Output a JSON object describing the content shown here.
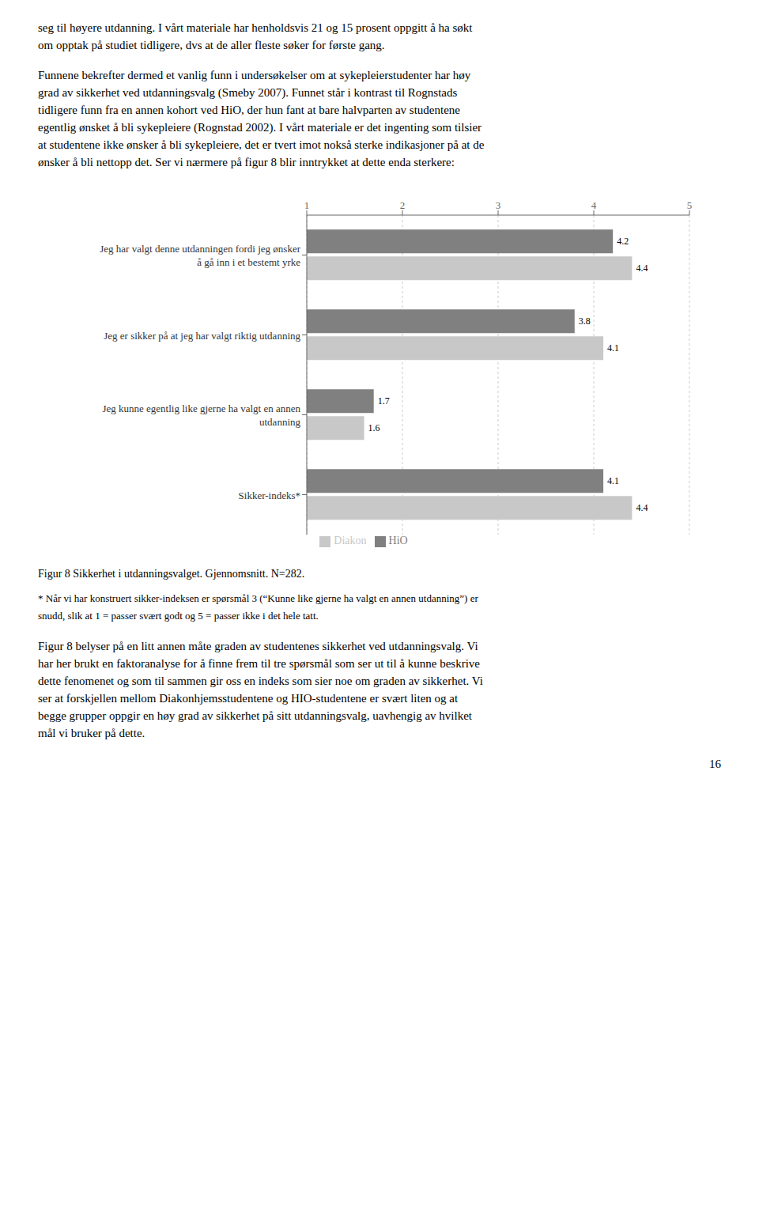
{
  "chart_data": {
    "type": "bar",
    "orientation": "horizontal",
    "title": "Figur 8 Sikkerhet i utdanningsvalget. Gjennomsnitt. N=282.",
    "categories": [
      "Jeg har valgt denne utdanningen fordi jeg ønsker\nå gå inn i et bestemt yrke",
      "Jeg er sikker på at jeg har valgt riktig utdanning",
      "Jeg kunne egentlig like gjerne ha valgt en annen\nutdanning",
      "Sikker-indeks*"
    ],
    "series": [
      {
        "name": "HiO",
        "color": "#808080",
        "values": [
          4.2,
          3.8,
          1.7,
          4.1
        ]
      },
      {
        "name": "Diakon",
        "color": "#c8c8c8",
        "values": [
          4.4,
          4.1,
          1.6,
          4.4
        ]
      }
    ],
    "xlim": [
      1,
      5
    ],
    "xticks": [
      1,
      2,
      3,
      4,
      5
    ],
    "grid": true,
    "legend": "bottom",
    "data_labels": true,
    "annotations": [
      [
        "seg til høyere utdanning. I vårt materiale har henholdsvis 21 og 15 prosent oppgitt å ha søkt",
        "om opptak på studiet tidligere, dvs at de aller fleste søker for første gang."
      ],
      [
        "Funnene bekrefter dermed et vanlig funn i undersøkelser om at sykepleierstudenter har høy",
        "grad av sikkerhet ved utdanningsvalg (Smeby 2007). Funnet står i kontrast til Rognstads",
        "tidligere funn fra en annen kohort ved HiO, der hun fant at bare halvparten av studentene",
        "egentlig ønsket å bli sykepleiere (Rognstad 2002). I vårt materiale er det ingenting som tilsier",
        "at studentene ikke ønsker å bli sykepleiere, det er tvert imot nokså sterke indikasjoner på at de",
        "ønsker å bli nettopp det. Ser vi nærmere på figur 8 blir inntrykket at dette enda sterkere:"
      ],
      [
        "* Når vi har konstruert sikker-indeksen er spørsmål 3 (“Kunne like gjerne ha valgt en annen utdanning”) er",
        "snudd, slik at 1 = passer svært godt og 5 = passer ikke i det hele tatt."
      ],
      [
        "Figur 8 belyser på en litt annen måte graden av studentenes sikkerhet ved utdanningsvalg. Vi",
        "har her brukt en faktoranalyse for å finne frem til tre spørsmål som ser ut til å kunne beskrive",
        "dette fenomenet og som til sammen gir oss en indeks som sier noe om graden av sikkerhet. Vi",
        "ser at forskjellen mellom Diakonhjemsstudentene og HIO-studentene er svært liten og at",
        "begge grupper oppgir en høy grad av sikkerhet på sitt utdanningsvalg, uavhengig av hvilket",
        "mål vi bruker på dette."
      ],
      [
        "16"
      ]
    ]
  }
}
